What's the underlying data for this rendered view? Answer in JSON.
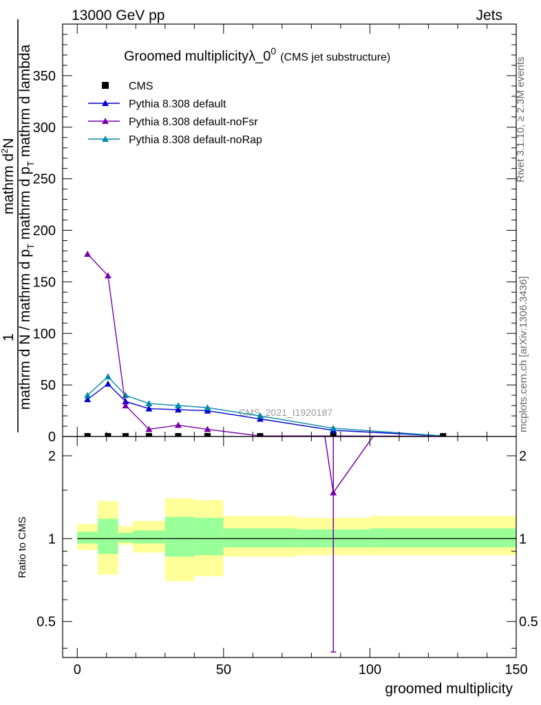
{
  "header": {
    "left": "13000 GeV pp",
    "right": "Jets"
  },
  "side_labels": {
    "rivet": "Rivet 3.1.10, ≥ 2.3M events",
    "mcplots": "mcplots.cern.ch [arXiv:1306.3436]"
  },
  "watermark": "CMS_2021_I1920187",
  "chart_data": [
    {
      "type": "line",
      "title": "Groomed multiplicityλ_0",
      "title_superscript": "0",
      "subtitle": "(CMS jet substructure)",
      "ylabel_numerator_prefix": "1",
      "ylabel_numerator": "mathrm d",
      "ylabel_numerator_sup": "2",
      "ylabel_numerator_suffix": "N",
      "ylabel_denominator": "mathrm d N / mathrm d p",
      "ylabel_denominator_sub": "T",
      "ylabel_denominator_2": " mathrm d p",
      "ylabel_denominator_2_sub": "T",
      "ylabel_denominator_3": " mathrm d lambda",
      "xlim": [
        -5,
        150
      ],
      "ylim": [
        0,
        400
      ],
      "y_ticks": [
        0,
        50,
        100,
        150,
        200,
        250,
        300,
        350
      ],
      "grid": false,
      "legend_position": "top-left",
      "x": [
        3.5,
        10.5,
        16.5,
        24.5,
        34.5,
        44.5,
        62.5,
        87.5,
        125
      ],
      "series": [
        {
          "name": "CMS",
          "marker": "square",
          "color": "#000000",
          "values": [
            0.3,
            0.3,
            0.3,
            0.3,
            0.3,
            0.3,
            0.3,
            0.3,
            0.3
          ]
        },
        {
          "name": "Pythia 8.308 default",
          "marker": "triangle",
          "color": "#0000cc",
          "values": [
            36,
            51,
            34,
            27,
            26,
            25,
            17,
            6,
            0.5
          ]
        },
        {
          "name": "Pythia 8.308 default-noFsr",
          "marker": "triangle",
          "color": "#7700aa",
          "values": [
            177,
            156,
            30,
            7,
            11,
            7,
            0.5,
            0.5,
            0.3
          ]
        },
        {
          "name": "Pythia 8.308 default-noRap",
          "marker": "triangle",
          "color": "#0088aa",
          "values": [
            40,
            58,
            40,
            32,
            30,
            28,
            20,
            8,
            0.6
          ]
        }
      ]
    },
    {
      "type": "line",
      "ylabel": "Ratio to CMS",
      "xlabel": "groomed multiplicity",
      "xlim": [
        -5,
        150
      ],
      "ylim": [
        0.37,
        2.35
      ],
      "log_y": true,
      "y_ticks": [
        0.5,
        1,
        2
      ],
      "x_ticks": [
        0,
        50,
        100,
        150
      ],
      "reference_value": 1,
      "bands": [
        {
          "x0": 0,
          "x1": 7,
          "inner": [
            0.96,
            1.06
          ],
          "outer": [
            0.91,
            1.13
          ]
        },
        {
          "x0": 7,
          "x1": 14,
          "inner": [
            0.88,
            1.18
          ],
          "outer": [
            0.74,
            1.37
          ]
        },
        {
          "x0": 14,
          "x1": 19,
          "inner": [
            0.97,
            1.05
          ],
          "outer": [
            0.95,
            1.11
          ]
        },
        {
          "x0": 19,
          "x1": 30,
          "inner": [
            0.96,
            1.07
          ],
          "outer": [
            0.89,
            1.16
          ]
        },
        {
          "x0": 30,
          "x1": 40,
          "inner": [
            0.86,
            1.2
          ],
          "outer": [
            0.7,
            1.4
          ]
        },
        {
          "x0": 40,
          "x1": 50,
          "inner": [
            0.87,
            1.19
          ],
          "outer": [
            0.73,
            1.38
          ]
        },
        {
          "x0": 50,
          "x1": 75,
          "inner": [
            0.93,
            1.09
          ],
          "outer": [
            0.86,
            1.21
          ]
        },
        {
          "x0": 75,
          "x1": 100,
          "inner": [
            0.93,
            1.08
          ],
          "outer": [
            0.87,
            1.19
          ]
        },
        {
          "x0": 100,
          "x1": 150,
          "inner": [
            0.93,
            1.09
          ],
          "outer": [
            0.87,
            1.21
          ]
        }
      ],
      "series": [
        {
          "name": "Pythia 8.308 default-noFsr",
          "color": "#7700aa",
          "points": [
            {
              "x": 84,
              "y": 2.6
            },
            {
              "x": 87.5,
              "y": 1.47
            },
            {
              "x": 104,
              "y": 2.6
            }
          ],
          "error_bars": [
            {
              "x": 87.5,
              "y": 1.47,
              "low": 0.35,
              "high": 2.6
            }
          ]
        }
      ]
    }
  ]
}
